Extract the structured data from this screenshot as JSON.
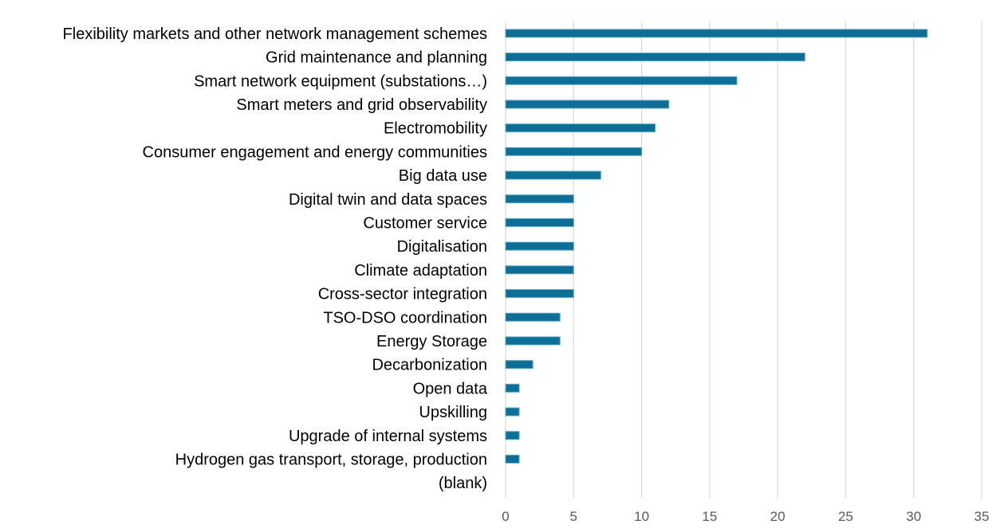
{
  "chart_data": {
    "type": "bar",
    "orientation": "horizontal",
    "categories": [
      "Flexibility markets and other network management schemes",
      "Grid maintenance and planning",
      "Smart network equipment (substations…)",
      "Smart meters and grid observability",
      "Electromobility",
      "Consumer engagement and energy communities",
      "Big data use",
      "Digital twin and data spaces",
      "Customer service",
      "Digitalisation",
      "Climate adaptation",
      "Cross-sector integration",
      "TSO-DSO coordination",
      "Energy Storage",
      "Decarbonization",
      "Open data",
      "Upskilling",
      "Upgrade of internal systems",
      "Hydrogen gas transport, storage, production",
      "(blank)"
    ],
    "values": [
      31,
      22,
      17,
      12,
      11,
      10,
      7,
      5,
      5,
      5,
      5,
      5,
      4,
      4,
      2,
      1,
      1,
      1,
      1,
      0
    ],
    "xlim": [
      0,
      35
    ],
    "x_ticks": [
      0,
      5,
      10,
      15,
      20,
      25,
      30,
      35
    ],
    "x_tick_labels": [
      "0",
      "5",
      "10",
      "15",
      "20",
      "25",
      "30",
      "35"
    ],
    "grid": true,
    "legend": "none",
    "bar_color": "#0d6e96",
    "bar_edge_color": "#5aa8c8",
    "grid_color": "#d9d9d9",
    "title": "",
    "xlabel": "",
    "ylabel": ""
  }
}
